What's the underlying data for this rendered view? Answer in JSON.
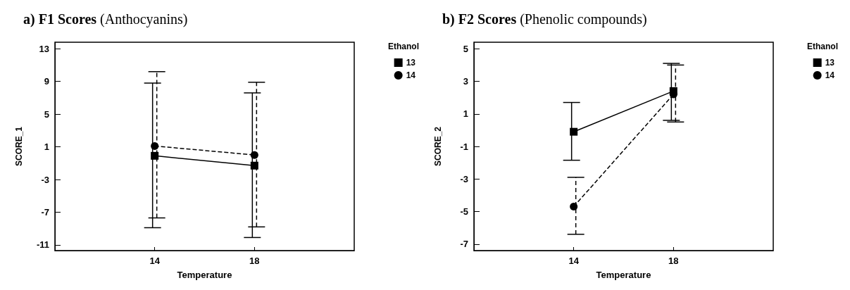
{
  "chart_data": [
    {
      "type": "line",
      "title": "a) F1 Scores (Anthocyanins)",
      "xlabel": "Temperature",
      "ylabel": "SCORE_1",
      "legend_title": "Ethanol",
      "legend": "top right",
      "grid": false,
      "categories": [
        null,
        "14",
        "18",
        null
      ],
      "ylim": [
        -11.7,
        13.8
      ],
      "yticks": [
        -11,
        -7,
        -3,
        1,
        5,
        9,
        13
      ],
      "series": [
        {
          "name": "13",
          "color": "#000000",
          "marker": "square",
          "line_style": "solid",
          "values": [
            null,
            -0.1,
            -1.3,
            null
          ],
          "errors": [
            null,
            [
              -8.9,
              8.8
            ],
            [
              -10.1,
              7.6
            ],
            null
          ]
        },
        {
          "name": "14",
          "color": "#000000",
          "marker": "circle",
          "line_style": "dashed",
          "values": [
            null,
            1.1,
            0.0,
            null
          ],
          "errors": [
            null,
            [
              -7.7,
              10.2
            ],
            [
              -8.8,
              8.9
            ],
            null
          ]
        }
      ]
    },
    {
      "type": "line",
      "title": "b) F2 Scores (Phenolic compounds)",
      "xlabel": "Temperature",
      "ylabel": "SCORE_2",
      "legend_title": "Ethanol",
      "legend": "top right",
      "grid": false,
      "categories": [
        null,
        "14",
        "18",
        null
      ],
      "ylim": [
        -7.4,
        5.4
      ],
      "yticks": [
        -7,
        -5,
        -3,
        -1,
        1,
        3,
        5
      ],
      "series": [
        {
          "name": "13",
          "color": "#000000",
          "marker": "square",
          "line_style": "solid",
          "values": [
            null,
            -0.1,
            2.4,
            null
          ],
          "errors": [
            null,
            [
              -1.85,
              1.7
            ],
            [
              0.6,
              4.1
            ],
            null
          ]
        },
        {
          "name": "14",
          "color": "#000000",
          "marker": "circle",
          "line_style": "dashed",
          "values": [
            null,
            -4.7,
            2.2,
            null
          ],
          "errors": [
            null,
            [
              -6.4,
              -2.9
            ],
            [
              0.5,
              4.0
            ],
            null
          ]
        }
      ]
    }
  ]
}
